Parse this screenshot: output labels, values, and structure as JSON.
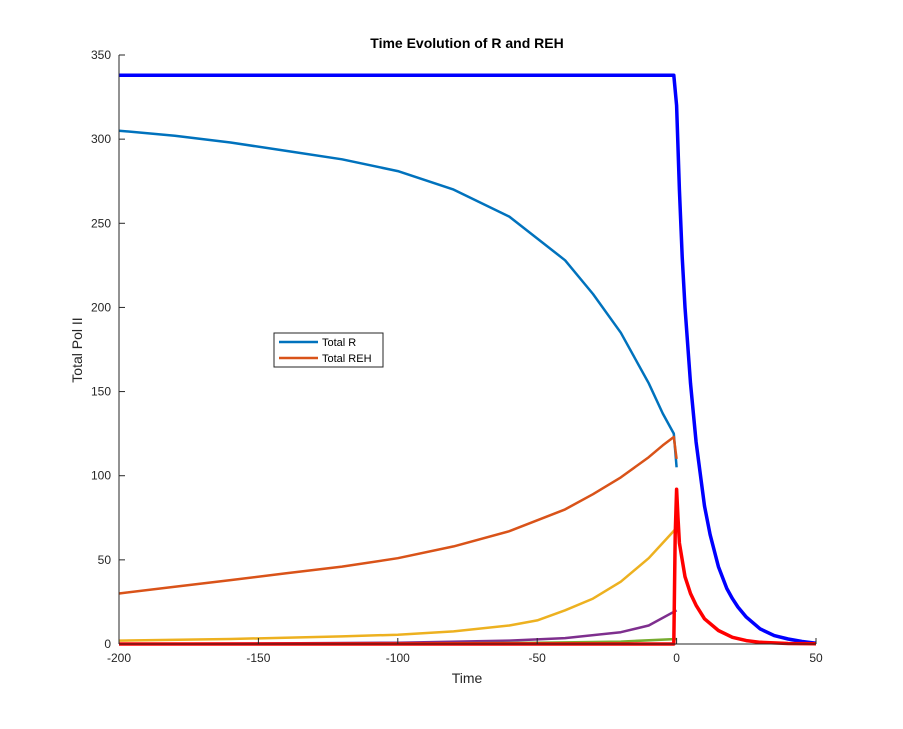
{
  "chart_data": {
    "type": "line",
    "title": "Time Evolution of R and REH",
    "xlabel": "Time",
    "ylabel": "Total Pol II",
    "xlim": [
      -200,
      50
    ],
    "ylim": [
      0,
      350
    ],
    "xticks": [
      -200,
      -150,
      -100,
      -50,
      0,
      50
    ],
    "yticks": [
      0,
      50,
      100,
      150,
      200,
      250,
      300,
      350
    ],
    "grid": false,
    "legend_position": "center-left",
    "legend": [
      {
        "label": "Total R",
        "color": "#0072BD"
      },
      {
        "label": "Total REH",
        "color": "#D95319"
      }
    ],
    "series": [
      {
        "name": "Total R",
        "color": "#0072BD",
        "width": 2.5,
        "x": [
          -200,
          -180,
          -160,
          -140,
          -120,
          -100,
          -80,
          -60,
          -40,
          -30,
          -20,
          -10,
          -5,
          -1,
          0
        ],
        "y": [
          305,
          302,
          298,
          293,
          288,
          281,
          270,
          254,
          228,
          208,
          185,
          155,
          137,
          125,
          105
        ]
      },
      {
        "color": "#D95319",
        "width": 2.5,
        "x": [
          -200,
          -180,
          -160,
          -140,
          -120,
          -100,
          -80,
          -60,
          -40,
          -30,
          -20,
          -10,
          -5,
          -1,
          0
        ],
        "y": [
          30,
          34,
          38,
          42,
          46,
          51,
          58,
          67,
          80,
          89,
          99,
          111,
          118,
          123,
          110
        ]
      },
      {
        "color": "#EDB120",
        "width": 2.5,
        "x": [
          -200,
          -160,
          -120,
          -100,
          -80,
          -60,
          -50,
          -40,
          -30,
          -20,
          -10,
          -5,
          0
        ],
        "y": [
          2,
          3,
          4.5,
          5.5,
          7.5,
          11,
          14,
          20,
          27,
          37,
          51,
          60,
          69
        ]
      },
      {
        "color": "#7E2F8E",
        "width": 2.5,
        "x": [
          -200,
          -150,
          -100,
          -60,
          -40,
          -20,
          -10,
          0
        ],
        "y": [
          0,
          0.3,
          0.8,
          2,
          3.5,
          7,
          11,
          20
        ]
      },
      {
        "color": "#77AC30",
        "width": 2.5,
        "x": [
          -200,
          -150,
          -100,
          -50,
          -20,
          0
        ],
        "y": [
          0,
          0.1,
          0.3,
          0.7,
          1.4,
          3
        ]
      },
      {
        "color": "#0000FF",
        "width": 3.5,
        "x": [
          -200,
          -1,
          0,
          1,
          2,
          3,
          5,
          7,
          10,
          12,
          15,
          18,
          20,
          22,
          25,
          30,
          35,
          40,
          45,
          50
        ],
        "y": [
          338,
          338,
          320,
          270,
          230,
          200,
          155,
          120,
          82,
          65,
          46,
          33,
          27,
          22,
          16,
          9,
          5,
          3,
          1.5,
          0.5
        ]
      },
      {
        "color": "#FF0000",
        "width": 3.5,
        "x": [
          -200,
          -1,
          -0.5,
          0,
          0.5,
          1,
          2,
          3,
          5,
          7,
          10,
          15,
          20,
          25,
          30,
          40,
          50
        ],
        "y": [
          0,
          0,
          65,
          92,
          75,
          60,
          50,
          40,
          30,
          23,
          15,
          8,
          4,
          2,
          1,
          0.3,
          0.1
        ]
      }
    ]
  }
}
